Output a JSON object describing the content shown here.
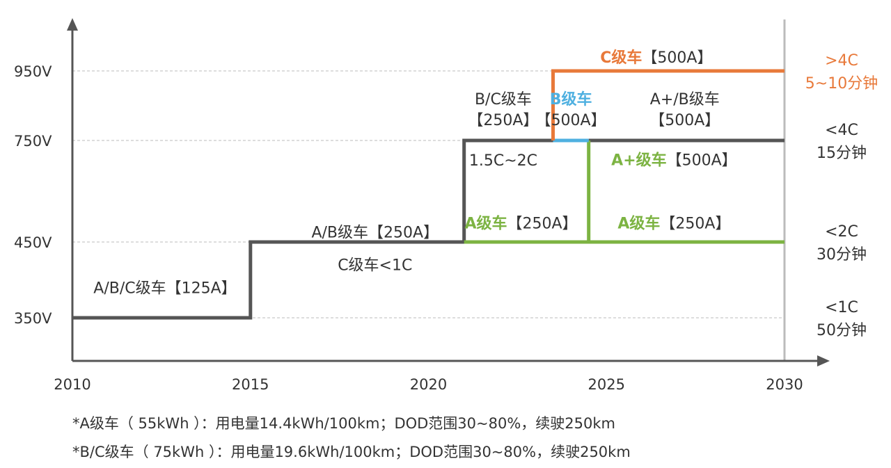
{
  "colors": {
    "axis": "#555555",
    "grid": "#bbbbbb",
    "gray_line": "#555555",
    "green": "#7cb342",
    "blue": "#4fb0e0",
    "orange": "#e8793a",
    "text": "#333333",
    "right_axis": "#bbbbbb"
  },
  "chart_data": {
    "type": "line",
    "title": "",
    "xlabel": "",
    "ylabel": "",
    "x_ticks": [
      "2010",
      "2015",
      "2020",
      "2025",
      "2030"
    ],
    "y_ticks": [
      "350V",
      "450V",
      "750V",
      "950V"
    ],
    "series": [
      {
        "color": "gray",
        "points": [
          [
            2010,
            350
          ],
          [
            2015,
            350
          ],
          [
            2015,
            450
          ],
          [
            2021,
            450
          ],
          [
            2021,
            750
          ],
          [
            2023.5,
            750
          ]
        ]
      },
      {
        "color": "gray",
        "points": [
          [
            2024.5,
            750
          ],
          [
            2030,
            750
          ]
        ]
      },
      {
        "color": "green",
        "points": [
          [
            2021,
            450
          ],
          [
            2030,
            450
          ]
        ]
      },
      {
        "color": "green",
        "points": [
          [
            2024.5,
            450
          ],
          [
            2024.5,
            750
          ]
        ]
      },
      {
        "color": "blue",
        "points": [
          [
            2023.5,
            750
          ],
          [
            2024.5,
            750
          ]
        ]
      },
      {
        "color": "orange",
        "points": [
          [
            2023.5,
            750
          ],
          [
            2023.5,
            950
          ],
          [
            2030,
            950
          ]
        ]
      }
    ],
    "annotations": [
      {
        "id": "ann-125",
        "parts": [
          "A/B/C级车【125A】"
        ],
        "x": 2012.6,
        "y": 390
      },
      {
        "id": "ann-ab250",
        "parts": [
          "A/B级车【250A】"
        ],
        "x": 2018.5,
        "y": 480
      },
      {
        "id": "ann-c1c",
        "parts": [
          "C级车<1C"
        ],
        "x": 2018.5,
        "y": 420
      },
      {
        "id": "ann-bc250-1",
        "parts": [
          "B/C级车"
        ],
        "x": 2022.1,
        "y": 870
      },
      {
        "id": "ann-bc250-2",
        "parts": [
          "【250A】"
        ],
        "x": 2022.1,
        "y": 810
      },
      {
        "id": "ann-15c",
        "parts": [
          "1.5C~2C"
        ],
        "x": 2022.1,
        "y": 692
      },
      {
        "id": "ann-a250-a",
        "parts": [
          "A级车",
          "【250A】"
        ],
        "x": 2022.6,
        "y": 506,
        "bold_first": "green"
      },
      {
        "id": "ann-b500-1",
        "parts": [
          "B级车"
        ],
        "x": 2024.0,
        "y": 870,
        "bold_first": "blue"
      },
      {
        "id": "ann-b500-2",
        "parts": [
          "【500A】"
        ],
        "x": 2024.0,
        "y": 810
      },
      {
        "id": "ann-c500",
        "parts": [
          "C级车",
          "【500A】"
        ],
        "x": 2026.4,
        "y": 990,
        "bold_first": "orange"
      },
      {
        "id": "ann-apb-1",
        "parts": [
          "A+/B级车"
        ],
        "x": 2027.2,
        "y": 870
      },
      {
        "id": "ann-apb-2",
        "parts": [
          "【500A】"
        ],
        "x": 2027.2,
        "y": 810
      },
      {
        "id": "ann-ap500",
        "parts": [
          "A+级车",
          "【500A】"
        ],
        "x": 2026.9,
        "y": 694,
        "bold_first": "green"
      },
      {
        "id": "ann-a250-b",
        "parts": [
          "A级车",
          "【250A】"
        ],
        "x": 2026.9,
        "y": 506,
        "bold_first": "green"
      }
    ],
    "right_labels": [
      {
        "lines": [
          ">4C",
          "5~10分钟"
        ],
        "y": 950,
        "color": "orange"
      },
      {
        "lines": [
          "<4C",
          "15分钟"
        ],
        "y": 750,
        "color": "text"
      },
      {
        "lines": [
          "<2C",
          "30分钟"
        ],
        "y": 450,
        "color": "text"
      },
      {
        "lines": [
          "<1C",
          "50分钟"
        ],
        "y": 350,
        "color": "text"
      }
    ]
  },
  "footnotes": [
    "*A级车（ 55kWh ）：用电量14.4kWh/100km；DOD范围30~80%，续驶250km",
    "*B/C级车（ 75kWh ）：用电量19.6kWh/100km；DOD范围30~80%，续驶250km"
  ]
}
